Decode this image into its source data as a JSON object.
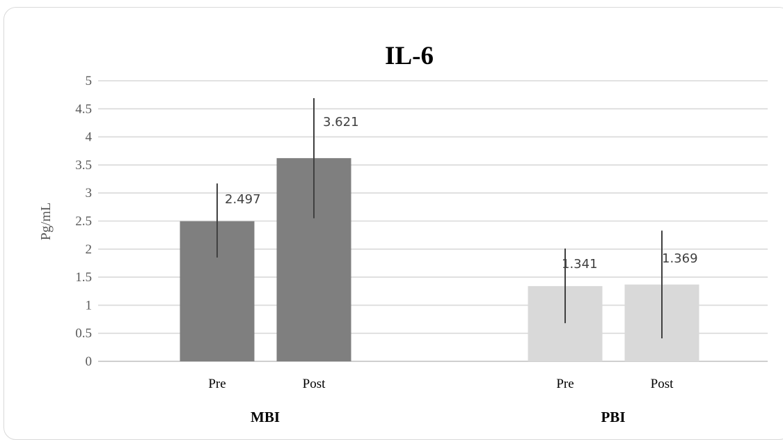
{
  "chart_data": {
    "type": "bar",
    "title": "IL-6",
    "ylabel": "Pg/mL",
    "xlabel": "",
    "ylim": [
      0,
      5
    ],
    "yticks": [
      "0",
      "0.5",
      "1",
      "1.5",
      "2",
      "2.5",
      "3",
      "3.5",
      "4",
      "4.5",
      "5"
    ],
    "grid": true,
    "groups": [
      {
        "name": "MBI",
        "color": "#7f7f7f",
        "bars": [
          {
            "label": "Pre",
            "value": 2.497,
            "value_label": "2.497",
            "err_low": 1.85,
            "err_high": 3.17
          },
          {
            "label": "Post",
            "value": 3.621,
            "value_label": "3.621",
            "err_low": 2.55,
            "err_high": 4.69
          }
        ]
      },
      {
        "name": "PBI",
        "color": "#d9d9d9",
        "bars": [
          {
            "label": "Pre",
            "value": 1.341,
            "value_label": "1.341",
            "err_low": 0.68,
            "err_high": 2.01
          },
          {
            "label": "Post",
            "value": 1.369,
            "value_label": "1.369",
            "err_low": 0.41,
            "err_high": 2.33
          }
        ]
      }
    ]
  }
}
